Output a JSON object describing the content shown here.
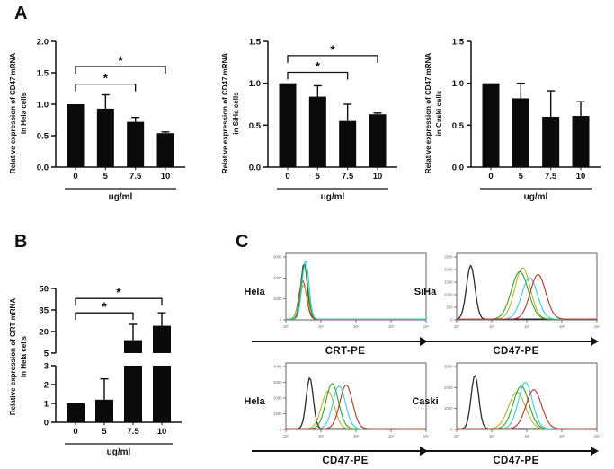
{
  "panels": {
    "A": {
      "label": "A"
    },
    "B": {
      "label": "B"
    },
    "C": {
      "label": "C"
    }
  },
  "chart_data": [
    {
      "type": "bar",
      "panel": "A",
      "ylabel_line1": "Relative  expression of CD47 mRNA",
      "ylabel_line2": "in Hela cells",
      "categories": [
        "0",
        "5",
        "7.5",
        "10"
      ],
      "values": [
        1.0,
        0.93,
        0.72,
        0.54
      ],
      "errors": [
        0,
        0.22,
        0.07,
        0.02
      ],
      "xlabel": "ug/ml",
      "ylim": [
        0,
        2.0
      ],
      "yticks": [
        "0.0",
        "0.5",
        "1.0",
        "1.5",
        "2.0"
      ],
      "significance": [
        {
          "from": 0,
          "to": 2,
          "label": "*",
          "height": 1.32
        },
        {
          "from": 0,
          "to": 3,
          "label": "*",
          "height": 1.6
        }
      ]
    },
    {
      "type": "bar",
      "panel": "A",
      "ylabel_line1": "Relative  expression of CD47 mRNA",
      "ylabel_line2": "in SiHa cells",
      "categories": [
        "0",
        "5",
        "7.5",
        "10"
      ],
      "values": [
        1.0,
        0.84,
        0.55,
        0.63
      ],
      "errors": [
        0,
        0.13,
        0.2,
        0.015
      ],
      "xlabel": "ug/ml",
      "ylim": [
        0,
        1.5
      ],
      "yticks": [
        "0.0",
        "0.5",
        "1.0",
        "1.5"
      ],
      "significance": [
        {
          "from": 0,
          "to": 2,
          "label": "*",
          "height": 1.13
        },
        {
          "from": 0,
          "to": 3,
          "label": "*",
          "height": 1.33
        }
      ]
    },
    {
      "type": "bar",
      "panel": "A",
      "ylabel_line1": "Relative  expression of CD47 mRNA",
      "ylabel_line2": "in  Caski cells",
      "categories": [
        "0",
        "5",
        "7.5",
        "10"
      ],
      "values": [
        1.0,
        0.82,
        0.6,
        0.61
      ],
      "errors": [
        0,
        0.18,
        0.31,
        0.17
      ],
      "xlabel": "ug/ml",
      "ylim": [
        0,
        1.5
      ],
      "yticks": [
        "0.0",
        "0.5",
        "1.0",
        "1.5"
      ],
      "significance": []
    },
    {
      "type": "bar",
      "panel": "B",
      "ylabel_line1": "Relative  expression of CRT mRNA",
      "ylabel_line2": "in Hela cells",
      "categories": [
        "0",
        "5",
        "7.5",
        "10"
      ],
      "values": [
        1.0,
        1.2,
        14,
        24
      ],
      "errors": [
        0,
        1.1,
        11,
        9
      ],
      "xlabel": "ug/ml",
      "axis_break": true,
      "segments": [
        {
          "domain": [
            0,
            3
          ],
          "ticks": [
            "0",
            "1",
            "2",
            "3"
          ],
          "frac": [
            0,
            0.423
          ]
        },
        {
          "domain": [
            5,
            50
          ],
          "ticks": [
            "5",
            "20",
            "35",
            "50"
          ],
          "frac": [
            0.517,
            1
          ]
        }
      ],
      "significance": [
        {
          "from": 0,
          "to": 2,
          "label": "*",
          "height": 33
        },
        {
          "from": 0,
          "to": 3,
          "label": "*",
          "height": 43
        }
      ]
    },
    {
      "type": "flow-histogram",
      "panel": "C",
      "cell_line": "Hela",
      "xlabel": "CRT-PE",
      "xticks": [
        "10⁰",
        "10¹",
        "10²",
        "10³",
        "10⁴"
      ],
      "yticks": [
        "6000",
        "4000",
        "2000",
        "0"
      ],
      "curves": [
        {
          "name": "black",
          "color": "#2a2a2a",
          "peak": 0.13,
          "sd": 0.023,
          "height": 0.92
        },
        {
          "name": "red",
          "color": "#b5342a",
          "peak": 0.12,
          "sd": 0.027,
          "height": 0.63
        },
        {
          "name": "olive",
          "color": "#b9b32a",
          "peak": 0.125,
          "sd": 0.03,
          "height": 0.55
        },
        {
          "name": "green",
          "color": "#33a02c",
          "peak": 0.132,
          "sd": 0.025,
          "height": 0.88
        },
        {
          "name": "cyan",
          "color": "#3fc8e0",
          "peak": 0.14,
          "sd": 0.024,
          "height": 0.97
        }
      ]
    },
    {
      "type": "flow-histogram",
      "panel": "C",
      "cell_line": "SiHa",
      "xlabel": "CD47-PE",
      "xticks": [
        "10⁰",
        "10¹",
        "10²",
        "10³",
        "10⁴"
      ],
      "yticks": [
        "2500",
        "2000",
        "1500",
        "1000",
        "500",
        "0"
      ],
      "curves": [
        {
          "name": "black",
          "color": "#2a2a2a",
          "peak": 0.1,
          "sd": 0.03,
          "height": 0.88
        },
        {
          "name": "olive",
          "color": "#b9b32a",
          "peak": 0.47,
          "sd": 0.055,
          "height": 0.84
        },
        {
          "name": "green",
          "color": "#33a02c",
          "peak": 0.45,
          "sd": 0.06,
          "height": 0.78
        },
        {
          "name": "cyan",
          "color": "#3fc8e0",
          "peak": 0.52,
          "sd": 0.055,
          "height": 0.68
        },
        {
          "name": "red",
          "color": "#b5342a",
          "peak": 0.58,
          "sd": 0.055,
          "height": 0.73
        }
      ]
    },
    {
      "type": "flow-histogram",
      "panel": "C",
      "cell_line": "Hela",
      "xlabel": "CD47-PE",
      "xticks": [
        "10⁰",
        "10¹",
        "10²",
        "10³",
        "10⁴"
      ],
      "yticks": [
        "4000",
        "3000",
        "2000",
        "1000",
        "0"
      ],
      "curves": [
        {
          "name": "black",
          "color": "#2a2a2a",
          "peak": 0.17,
          "sd": 0.025,
          "height": 0.84
        },
        {
          "name": "olive",
          "color": "#b9b32a",
          "peak": 0.3,
          "sd": 0.045,
          "height": 0.62
        },
        {
          "name": "green",
          "color": "#33a02c",
          "peak": 0.33,
          "sd": 0.045,
          "height": 0.74
        },
        {
          "name": "cyan",
          "color": "#3fc8e0",
          "peak": 0.38,
          "sd": 0.045,
          "height": 0.7
        },
        {
          "name": "red",
          "color": "#b5342a",
          "peak": 0.43,
          "sd": 0.045,
          "height": 0.72
        }
      ]
    },
    {
      "type": "flow-histogram",
      "panel": "C",
      "cell_line": "Caski",
      "xlabel": "CD47-PE",
      "xticks": [
        "10⁰",
        "10¹",
        "10²",
        "10³",
        "10⁴"
      ],
      "yticks": [
        "3000",
        "2000",
        "1000",
        "0"
      ],
      "curves": [
        {
          "name": "black",
          "color": "#2a2a2a",
          "peak": 0.13,
          "sd": 0.027,
          "height": 0.88
        },
        {
          "name": "olive",
          "color": "#b9b32a",
          "peak": 0.43,
          "sd": 0.06,
          "height": 0.6
        },
        {
          "name": "green",
          "color": "#33a02c",
          "peak": 0.46,
          "sd": 0.055,
          "height": 0.7
        },
        {
          "name": "cyan",
          "color": "#3fc8e0",
          "peak": 0.49,
          "sd": 0.05,
          "height": 0.76
        },
        {
          "name": "red",
          "color": "#b5342a",
          "peak": 0.55,
          "sd": 0.055,
          "height": 0.64
        }
      ]
    }
  ]
}
